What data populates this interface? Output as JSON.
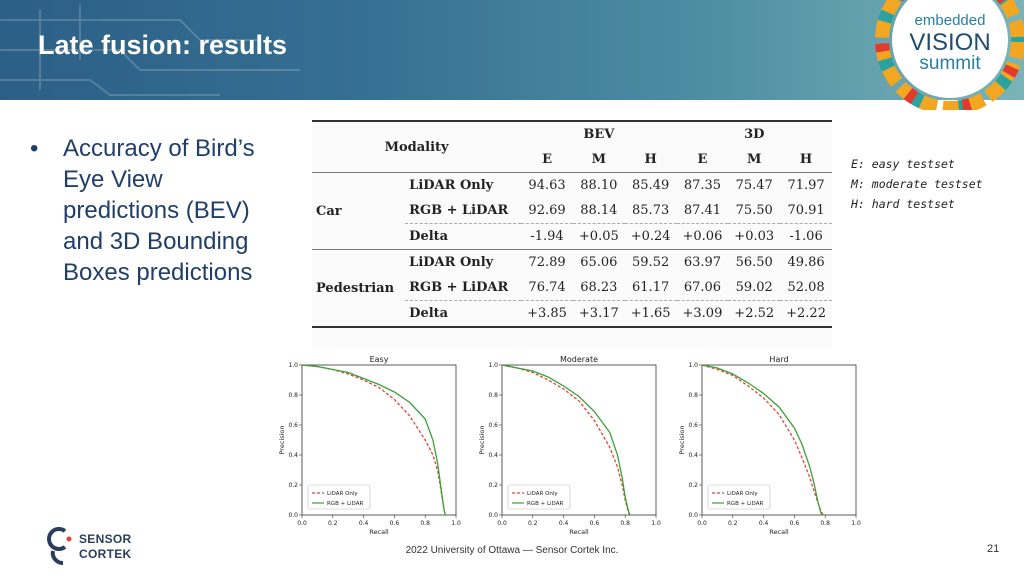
{
  "header": {
    "title": "Late fusion: results"
  },
  "logo": {
    "line1": "embedded",
    "line2": "VISION",
    "line3": "summit"
  },
  "bullet": {
    "marker": "•",
    "text": "Accuracy of Bird’s Eye View predictions (BEV) and 3D Bounding Boxes predictions"
  },
  "notes": [
    "E: easy testset",
    "M: moderate testset",
    "H: hard testset"
  ],
  "table": {
    "modality_header": "Modality",
    "groups": [
      "BEV",
      "3D"
    ],
    "subheaders": [
      "E",
      "M",
      "H",
      "E",
      "M",
      "H"
    ],
    "sections": [
      {
        "name": "Car",
        "rows": [
          {
            "modality": "LiDAR Only",
            "values": [
              "94.63",
              "88.10",
              "85.49",
              "87.35",
              "75.47",
              "71.97"
            ]
          },
          {
            "modality": "RGB + LiDAR",
            "values": [
              "92.69",
              "88.14",
              "85.73",
              "87.41",
              "75.50",
              "70.91"
            ]
          },
          {
            "modality": "Delta",
            "values": [
              "-1.94",
              "+0.05",
              "+0.24",
              "+0.06",
              "+0.03",
              "-1.06"
            ]
          }
        ]
      },
      {
        "name": "Pedestrian",
        "rows": [
          {
            "modality": "LiDAR Only",
            "values": [
              "72.89",
              "65.06",
              "59.52",
              "63.97",
              "56.50",
              "49.86"
            ]
          },
          {
            "modality": "RGB + LiDAR",
            "values": [
              "76.74",
              "68.23",
              "61.17",
              "67.06",
              "59.02",
              "52.08"
            ]
          },
          {
            "modality": "Delta",
            "values": [
              "+3.85",
              "+3.17",
              "+1.65",
              "+3.09",
              "+2.52",
              "+2.22"
            ]
          }
        ]
      }
    ]
  },
  "chart_data": [
    {
      "type": "line",
      "title": "Easy",
      "xlabel": "Recall",
      "ylabel": "Precision",
      "xlim": [
        0,
        1.0
      ],
      "ylim": [
        0,
        1.0
      ],
      "xticks": [
        "0.0",
        "0.2",
        "0.4",
        "0.6",
        "0.8",
        "1.0"
      ],
      "yticks": [
        "0.0",
        "0.2",
        "0.4",
        "0.6",
        "0.8",
        "1.0"
      ],
      "legend": "lower-left",
      "series": [
        {
          "name": "LiDAR Only",
          "color": "#e0443c",
          "dash": true,
          "x": [
            0,
            0.1,
            0.2,
            0.3,
            0.4,
            0.5,
            0.6,
            0.7,
            0.8,
            0.85,
            0.88,
            0.9,
            0.92,
            0.93
          ],
          "y": [
            1.0,
            0.99,
            0.97,
            0.94,
            0.9,
            0.85,
            0.77,
            0.66,
            0.5,
            0.4,
            0.3,
            0.18,
            0.05,
            0.0
          ]
        },
        {
          "name": "RGB + LiDAR",
          "color": "#3aa13a",
          "dash": false,
          "x": [
            0,
            0.1,
            0.2,
            0.3,
            0.4,
            0.5,
            0.6,
            0.7,
            0.8,
            0.85,
            0.88,
            0.9,
            0.92,
            0.93
          ],
          "y": [
            1.0,
            0.99,
            0.97,
            0.95,
            0.91,
            0.87,
            0.82,
            0.75,
            0.64,
            0.5,
            0.35,
            0.2,
            0.05,
            0.0
          ]
        }
      ]
    },
    {
      "type": "line",
      "title": "Moderate",
      "xlabel": "Recall",
      "ylabel": "Precision",
      "xlim": [
        0,
        1.0
      ],
      "ylim": [
        0,
        1.0
      ],
      "xticks": [
        "0.0",
        "0.2",
        "0.4",
        "0.6",
        "0.8",
        "1.0"
      ],
      "yticks": [
        "0.0",
        "0.2",
        "0.4",
        "0.6",
        "0.8",
        "1.0"
      ],
      "legend": "lower-left",
      "series": [
        {
          "name": "LiDAR Only",
          "color": "#e0443c",
          "dash": true,
          "x": [
            0,
            0.1,
            0.2,
            0.3,
            0.4,
            0.5,
            0.6,
            0.7,
            0.75,
            0.78,
            0.8,
            0.82,
            0.83
          ],
          "y": [
            1.0,
            0.98,
            0.95,
            0.9,
            0.84,
            0.76,
            0.63,
            0.45,
            0.32,
            0.2,
            0.1,
            0.02,
            0.0
          ]
        },
        {
          "name": "RGB + LiDAR",
          "color": "#3aa13a",
          "dash": false,
          "x": [
            0,
            0.1,
            0.2,
            0.3,
            0.4,
            0.5,
            0.6,
            0.7,
            0.75,
            0.78,
            0.8,
            0.82,
            0.83
          ],
          "y": [
            1.0,
            0.98,
            0.96,
            0.92,
            0.86,
            0.79,
            0.69,
            0.55,
            0.4,
            0.25,
            0.12,
            0.03,
            0.0
          ]
        }
      ]
    },
    {
      "type": "line",
      "title": "Hard",
      "xlabel": "Recall",
      "ylabel": "Precision",
      "xlim": [
        0,
        1.0
      ],
      "ylim": [
        0,
        1.0
      ],
      "xticks": [
        "0.0",
        "0.2",
        "0.4",
        "0.6",
        "0.8",
        "1.0"
      ],
      "yticks": [
        "0.0",
        "0.2",
        "0.4",
        "0.6",
        "0.8",
        "1.0"
      ],
      "legend": "lower-left",
      "series": [
        {
          "name": "LiDAR Only",
          "color": "#e0443c",
          "dash": true,
          "x": [
            0,
            0.1,
            0.2,
            0.3,
            0.4,
            0.5,
            0.6,
            0.65,
            0.7,
            0.73,
            0.76,
            0.78,
            0.79
          ],
          "y": [
            1.0,
            0.97,
            0.93,
            0.86,
            0.78,
            0.67,
            0.5,
            0.38,
            0.25,
            0.15,
            0.06,
            0.01,
            0.0
          ]
        },
        {
          "name": "RGB + LiDAR",
          "color": "#3aa13a",
          "dash": false,
          "x": [
            0,
            0.1,
            0.2,
            0.3,
            0.4,
            0.5,
            0.6,
            0.65,
            0.7,
            0.73,
            0.75,
            0.77,
            0.78
          ],
          "y": [
            1.0,
            0.98,
            0.94,
            0.88,
            0.81,
            0.72,
            0.58,
            0.47,
            0.32,
            0.2,
            0.1,
            0.02,
            0.0
          ]
        }
      ]
    }
  ],
  "footer": {
    "text": "2022 University of Ottawa — Sensor Cortek Inc.",
    "page": "21"
  },
  "sensor_logo": {
    "line1": "SENSOR",
    "line2": "CORTEK"
  }
}
